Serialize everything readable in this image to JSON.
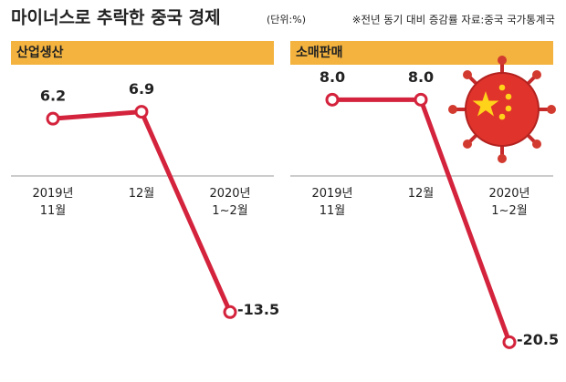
{
  "title": "마이너스로 추락한 중국 경제",
  "unit": "(단위:%)",
  "note": "※전년 동기 대비 증감률  자료:중국 국가통계국",
  "chart_data": [
    {
      "type": "line",
      "title": "산업생산",
      "categories": [
        "2019년\n11월",
        "12월",
        "2020년\n1~2월"
      ],
      "values": [
        6.2,
        6.9,
        -13.5
      ],
      "color": "#d4233c",
      "ylim": [
        -17,
        9
      ]
    },
    {
      "type": "line",
      "title": "소매판매",
      "categories": [
        "2019년\n11월",
        "12월",
        "2020년\n1~2월"
      ],
      "values": [
        8,
        8,
        -20.5
      ],
      "value_labels": [
        "8.0",
        "8.0",
        "-20.5"
      ],
      "color": "#d4233c",
      "ylim": [
        -21,
        9
      ]
    }
  ]
}
